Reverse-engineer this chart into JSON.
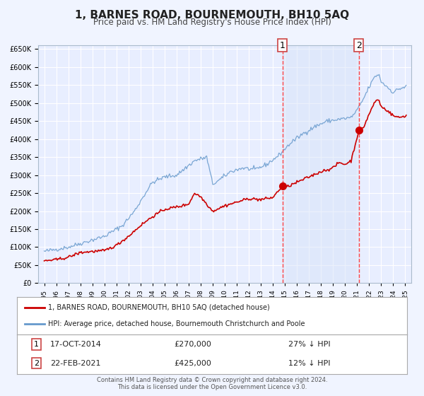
{
  "title": "1, BARNES ROAD, BOURNEMOUTH, BH10 5AQ",
  "subtitle": "Price paid vs. HM Land Registry's House Price Index (HPI)",
  "background_color": "#f0f4ff",
  "plot_bg_color": "#e8eeff",
  "grid_color": "#ffffff",
  "red_line_color": "#cc0000",
  "blue_line_color": "#6699cc",
  "marker1_date": 2014.8,
  "marker1_value": 270000,
  "marker2_date": 2021.15,
  "marker2_value": 425000,
  "vline1_date": 2014.8,
  "vline2_date": 2021.15,
  "ylim_min": 0,
  "ylim_max": 660000,
  "xlim_min": 1994.5,
  "xlim_max": 2025.5,
  "yticks": [
    0,
    50000,
    100000,
    150000,
    200000,
    250000,
    300000,
    350000,
    400000,
    450000,
    500000,
    550000,
    600000,
    650000
  ],
  "xtick_years": [
    1995,
    1996,
    1997,
    1998,
    1999,
    2000,
    2001,
    2002,
    2003,
    2004,
    2005,
    2006,
    2007,
    2008,
    2009,
    2010,
    2011,
    2012,
    2013,
    2014,
    2015,
    2016,
    2017,
    2018,
    2019,
    2020,
    2021,
    2022,
    2023,
    2024,
    2025
  ],
  "legend1_label": "1, BARNES ROAD, BOURNEMOUTH, BH10 5AQ (detached house)",
  "legend2_label": "HPI: Average price, detached house, Bournemouth Christchurch and Poole",
  "annotation1_num": "1",
  "annotation1_date": "17-OCT-2014",
  "annotation1_price": "£270,000",
  "annotation1_hpi": "27% ↓ HPI",
  "annotation2_num": "2",
  "annotation2_date": "22-FEB-2021",
  "annotation2_price": "£425,000",
  "annotation2_hpi": "12% ↓ HPI",
  "footer1": "Contains HM Land Registry data © Crown copyright and database right 2024.",
  "footer2": "This data is licensed under the Open Government Licence v3.0."
}
